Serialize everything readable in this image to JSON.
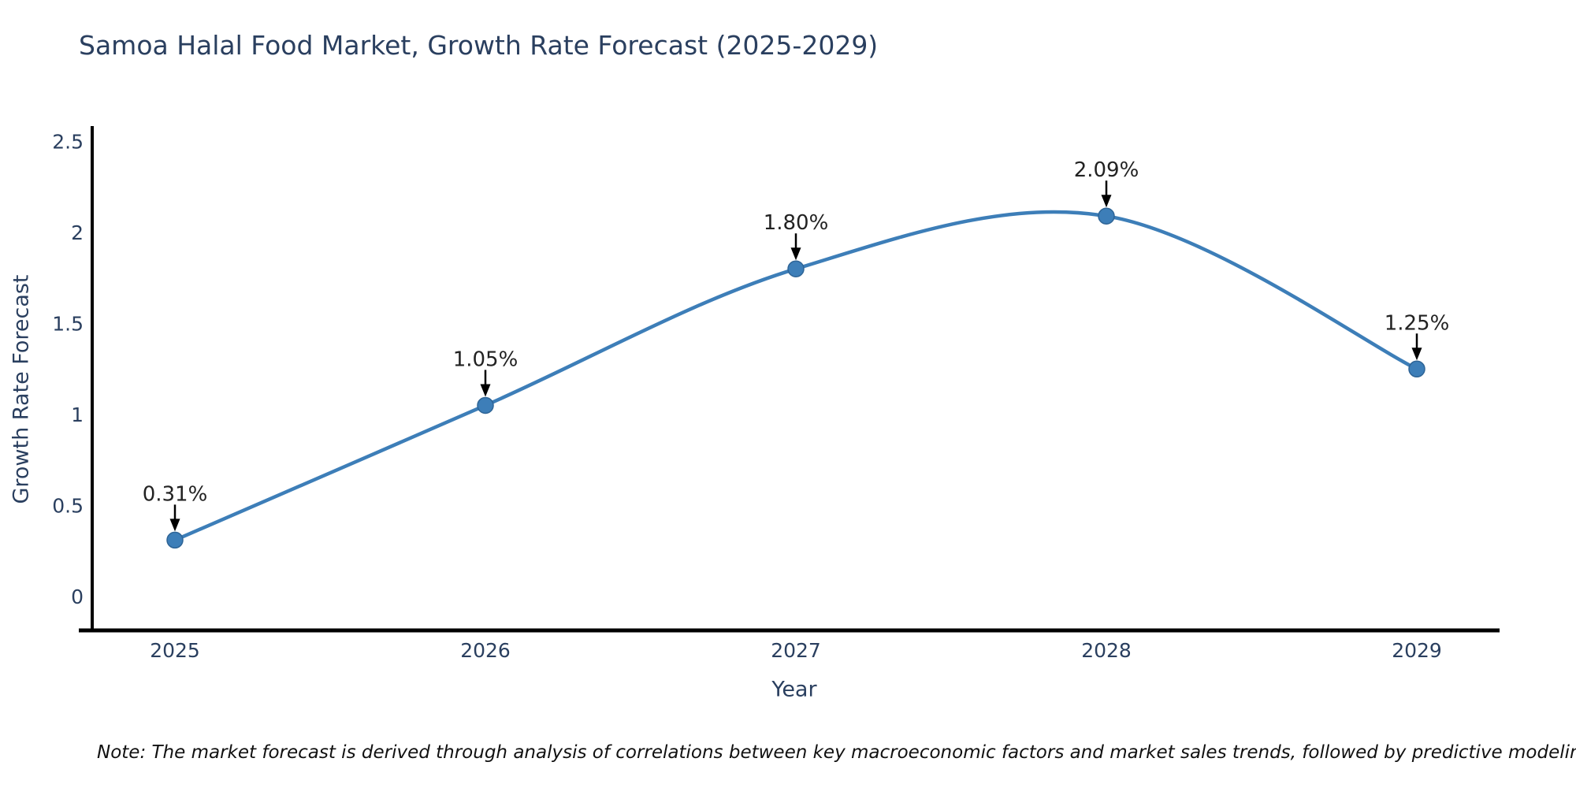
{
  "title": "Samoa Halal Food Market, Growth Rate Forecast (2025-2029)",
  "chart_data": {
    "type": "line",
    "title": "Samoa Halal Food Market, Growth Rate Forecast (2025-2029)",
    "xlabel": "Year",
    "ylabel": "Growth Rate Forecast",
    "categories": [
      "2025",
      "2026",
      "2027",
      "2028",
      "2029"
    ],
    "x": [
      2025,
      2026,
      2027,
      2028,
      2029
    ],
    "values": [
      0.31,
      1.05,
      1.8,
      2.09,
      1.25
    ],
    "point_labels": [
      "0.31%",
      "1.05%",
      "1.80%",
      "2.09%",
      "1.25%"
    ],
    "y_ticks": [
      0,
      0.5,
      1,
      1.5,
      2,
      2.5
    ],
    "y_tick_labels": [
      "0",
      "0.5",
      "1",
      "1.5",
      "2",
      "2.5"
    ],
    "ylim": [
      -0.19,
      2.58
    ],
    "grid": false,
    "legend": false,
    "line_style": "spline",
    "line_color": "#3d7eb8",
    "marker_color": "#3d7eb8",
    "marker_edge_color": "#2e6496",
    "axis_color": "#000000",
    "tick_color": "#2a3f5f",
    "annotation_color": "#222222",
    "arrow_color": "#000000"
  },
  "note": "Note: The market forecast is derived through analysis of correlations between key macroeconomic factors and market sales trends, followed by predictive modeling to project future sales"
}
